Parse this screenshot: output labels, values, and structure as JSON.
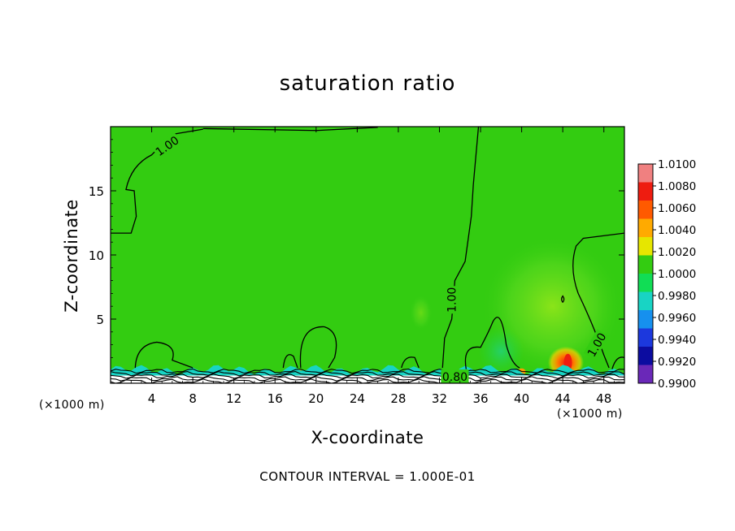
{
  "chart_data": {
    "type": "heatmap",
    "title": "saturation ratio",
    "xlabel": "X-coordinate",
    "ylabel": "Z-coordinate",
    "x_unit": "(×1000 m)",
    "xlim": [
      0,
      50
    ],
    "ylim": [
      0,
      20
    ],
    "x_ticks": [
      4,
      8,
      12,
      16,
      20,
      24,
      28,
      32,
      36,
      40,
      44,
      48
    ],
    "y_ticks": [
      5,
      10,
      15
    ],
    "footnote": "CONTOUR INTERVAL = 1.000E-01",
    "contour_labels": [
      {
        "text": "1.00",
        "x": 5.5,
        "z": 18.5,
        "angle": -35
      },
      {
        "text": "1.00",
        "x": 33.2,
        "z": 6.5,
        "angle": -90
      },
      {
        "text": "1.00",
        "x": 47.3,
        "z": 3.0,
        "angle": -60
      },
      {
        "text": "0.80",
        "x": 33.5,
        "z": 0.5,
        "angle": 0
      }
    ],
    "colorbar": {
      "levels": [
        "1.0100",
        "1.0080",
        "1.0060",
        "1.0040",
        "1.0020",
        "1.0000",
        "0.9980",
        "0.9960",
        "0.9940",
        "0.9920",
        "0.9900"
      ],
      "colors": [
        "#f08080",
        "#ee1c10",
        "#ff5a00",
        "#ffaa00",
        "#e6e600",
        "#33cc11",
        "#11dd55",
        "#18d4c4",
        "#1690ee",
        "#1c38dd",
        "#0c0ca0",
        "#6a28b8"
      ]
    },
    "field_background": "#33cc11",
    "features": [
      {
        "name": "warm-plume",
        "x_range": [
          38,
          47
        ],
        "z_range": [
          0.5,
          11
        ],
        "color": "#66e011"
      },
      {
        "name": "supersat-core",
        "x_range": [
          42,
          46
        ],
        "z_range": [
          0.8,
          2.2
        ],
        "color": "#ff5a00"
      },
      {
        "name": "surface-band",
        "x_range": [
          0,
          50
        ],
        "z_range": [
          0,
          1.2
        ],
        "color": "#18d4c4"
      }
    ]
  }
}
